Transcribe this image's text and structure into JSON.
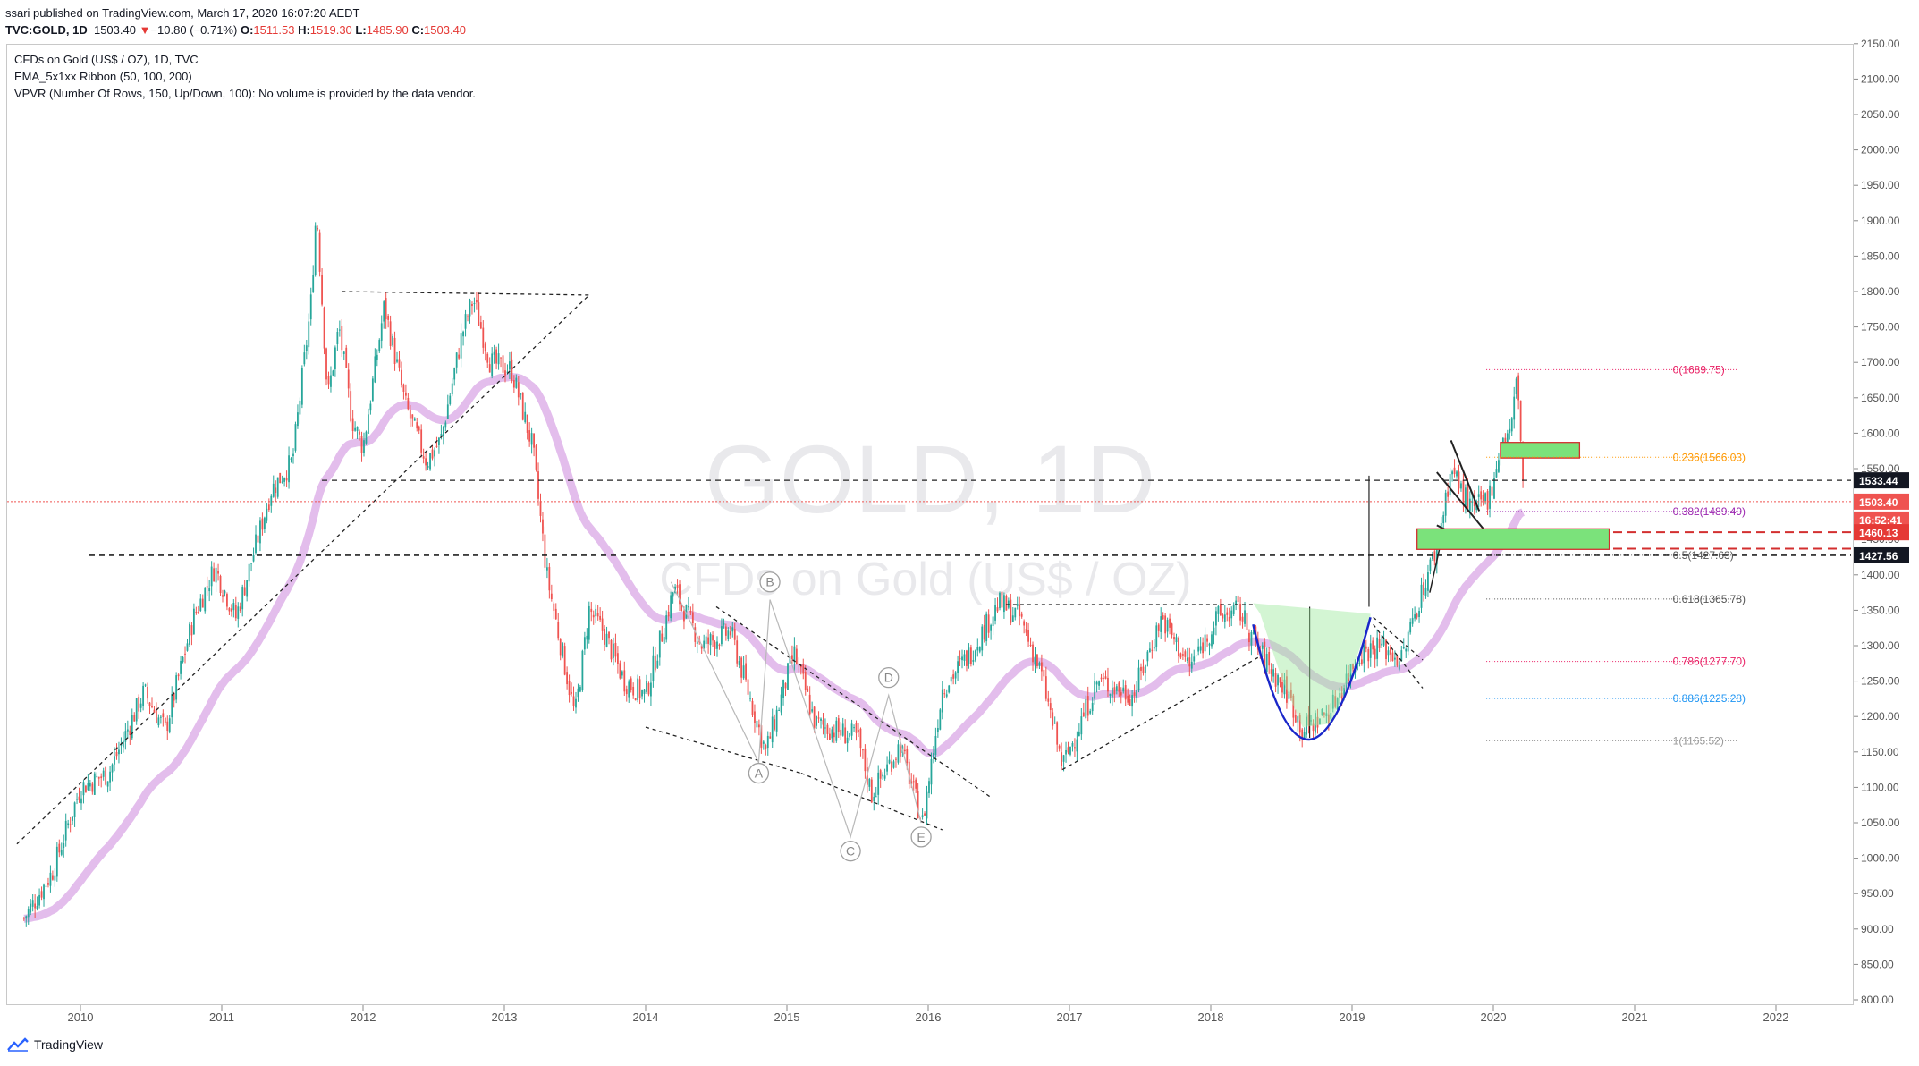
{
  "header": {
    "published": "ssari published on TradingView.com, March 17, 2020 16:07:20 AEDT",
    "symbol": "TVC:GOLD, 1D",
    "last": "1503.40",
    "arrow": "▼",
    "change": "−10.80 (−0.71%)",
    "o_label": "O:",
    "o": "1511.53",
    "h_label": "H:",
    "h": "1519.30",
    "l_label": "L:",
    "l": "1485.90",
    "c_label": "C:",
    "c": "1503.40"
  },
  "legend": [
    "CFDs on Gold (US$ / OZ), 1D, TVC",
    "EMA_5x1xx Ribbon  (50, 100, 200)",
    "VPVR (Number Of Rows, 150, Up/Down, 100): No volume is provided by the data vendor."
  ],
  "watermark": {
    "line1": "GOLD, 1D",
    "line2": "CFDs on Gold (US$ / OZ)"
  },
  "footer": {
    "brand": "TradingView"
  },
  "colors": {
    "up": "#26a69a",
    "down": "#ef5350",
    "ribbon": "#d9a7e6",
    "grid_border": "#c8c8c8",
    "fib_0": "#e91e63",
    "fib_236": "#ff9800",
    "fib_382": "#9c27b0",
    "fib_618": "#555555",
    "fib_786": "#e91e63",
    "fib_886": "#2196f3",
    "fib_1": "#999999",
    "green_box": "#7be27b",
    "box_border": "#d32f2f",
    "cup": "#1a27c9",
    "price_red": "#ef5350"
  },
  "chart_data": {
    "type": "candlestick",
    "symbol": "TVC:GOLD",
    "interval": "1D",
    "x_axis_labels": [
      "2010",
      "2011",
      "2012",
      "2013",
      "2014",
      "2015",
      "2016",
      "2017",
      "2018",
      "2019",
      "2020",
      "2021",
      "2022"
    ],
    "y_ticks": [
      800,
      850,
      900,
      950,
      1000,
      1050,
      1100,
      1150,
      1200,
      1250,
      1300,
      1350,
      1400,
      1450,
      1500,
      1550,
      1600,
      1650,
      1700,
      1750,
      1800,
      1850,
      1900,
      1950,
      2000,
      2050,
      2100,
      2150
    ],
    "ylim": [
      800,
      2150
    ],
    "price_path": [
      [
        2009.6,
        915
      ],
      [
        2009.8,
        980
      ],
      [
        2010.0,
        1100
      ],
      [
        2010.2,
        1120
      ],
      [
        2010.45,
        1235
      ],
      [
        2010.6,
        1180
      ],
      [
        2010.8,
        1340
      ],
      [
        2010.95,
        1410
      ],
      [
        2011.1,
        1340
      ],
      [
        2011.35,
        1520
      ],
      [
        2011.5,
        1560
      ],
      [
        2011.63,
        1780
      ],
      [
        2011.67,
        1920
      ],
      [
        2011.75,
        1650
      ],
      [
        2011.83,
        1750
      ],
      [
        2011.92,
        1620
      ],
      [
        2012.0,
        1580
      ],
      [
        2012.15,
        1780
      ],
      [
        2012.3,
        1640
      ],
      [
        2012.45,
        1560
      ],
      [
        2012.55,
        1590
      ],
      [
        2012.7,
        1740
      ],
      [
        2012.78,
        1790
      ],
      [
        2012.9,
        1700
      ],
      [
        2013.05,
        1690
      ],
      [
        2013.2,
        1580
      ],
      [
        2013.3,
        1400
      ],
      [
        2013.5,
        1200
      ],
      [
        2013.6,
        1350
      ],
      [
        2013.7,
        1320
      ],
      [
        2013.85,
        1250
      ],
      [
        2014.0,
        1230
      ],
      [
        2014.2,
        1380
      ],
      [
        2014.4,
        1300
      ],
      [
        2014.6,
        1320
      ],
      [
        2014.85,
        1150
      ],
      [
        2015.05,
        1290
      ],
      [
        2015.2,
        1190
      ],
      [
        2015.5,
        1170
      ],
      [
        2015.6,
        1090
      ],
      [
        2015.8,
        1160
      ],
      [
        2015.96,
        1050
      ],
      [
        2016.1,
        1240
      ],
      [
        2016.3,
        1290
      ],
      [
        2016.5,
        1360
      ],
      [
        2016.65,
        1340
      ],
      [
        2016.8,
        1260
      ],
      [
        2016.95,
        1130
      ],
      [
        2017.2,
        1250
      ],
      [
        2017.45,
        1230
      ],
      [
        2017.65,
        1340
      ],
      [
        2017.85,
        1270
      ],
      [
        2018.05,
        1340
      ],
      [
        2018.2,
        1350
      ],
      [
        2018.35,
        1290
      ],
      [
        2018.55,
        1230
      ],
      [
        2018.65,
        1180
      ],
      [
        2018.85,
        1210
      ],
      [
        2019.05,
        1290
      ],
      [
        2019.2,
        1300
      ],
      [
        2019.35,
        1280
      ],
      [
        2019.45,
        1350
      ],
      [
        2019.6,
        1440
      ],
      [
        2019.7,
        1550
      ],
      [
        2019.85,
        1490
      ],
      [
        2019.97,
        1510
      ],
      [
        2020.05,
        1580
      ],
      [
        2020.13,
        1610
      ],
      [
        2020.17,
        1689
      ],
      [
        2020.2,
        1560
      ],
      [
        2020.22,
        1503
      ]
    ],
    "horizontal_levels": [
      {
        "price": 1533.44,
        "label": "1533.44",
        "style": "dashed"
      },
      {
        "price": 1427.56,
        "label": "1427.56",
        "style": "dashed"
      },
      {
        "price": 1503.4,
        "label": "1503.40",
        "style": "current"
      },
      {
        "price": 1460.13,
        "label": "1460.13",
        "style": "red-dashed"
      }
    ],
    "countdown": "16:52:41",
    "fibonacci": [
      {
        "ratio": "0",
        "price": 1689.75,
        "label": "0(1689.75)"
      },
      {
        "ratio": "0.236",
        "price": 1566.03,
        "label": "0.236(1566.03)"
      },
      {
        "ratio": "0.382",
        "price": 1489.49,
        "label": "0.382(1489.49)"
      },
      {
        "ratio": "0.5",
        "price": 1427.63,
        "label": "0.5(1427.63)"
      },
      {
        "ratio": "0.618",
        "price": 1365.78,
        "label": "0.618(1365.78)"
      },
      {
        "ratio": "0.786",
        "price": 1277.7,
        "label": "0.786(1277.70)"
      },
      {
        "ratio": "0.886",
        "price": 1225.28,
        "label": "0.886(1225.28)"
      },
      {
        "ratio": "1",
        "price": 1165.52,
        "label": "1(1165.52)"
      }
    ],
    "wave_labels": [
      {
        "label": "A",
        "date": 2014.8,
        "price": 1120
      },
      {
        "label": "B",
        "date": 2014.88,
        "price": 1390
      },
      {
        "label": "C",
        "date": 2015.45,
        "price": 1010
      },
      {
        "label": "D",
        "date": 2015.72,
        "price": 1255
      },
      {
        "label": "E",
        "date": 2015.95,
        "price": 1030
      }
    ]
  }
}
